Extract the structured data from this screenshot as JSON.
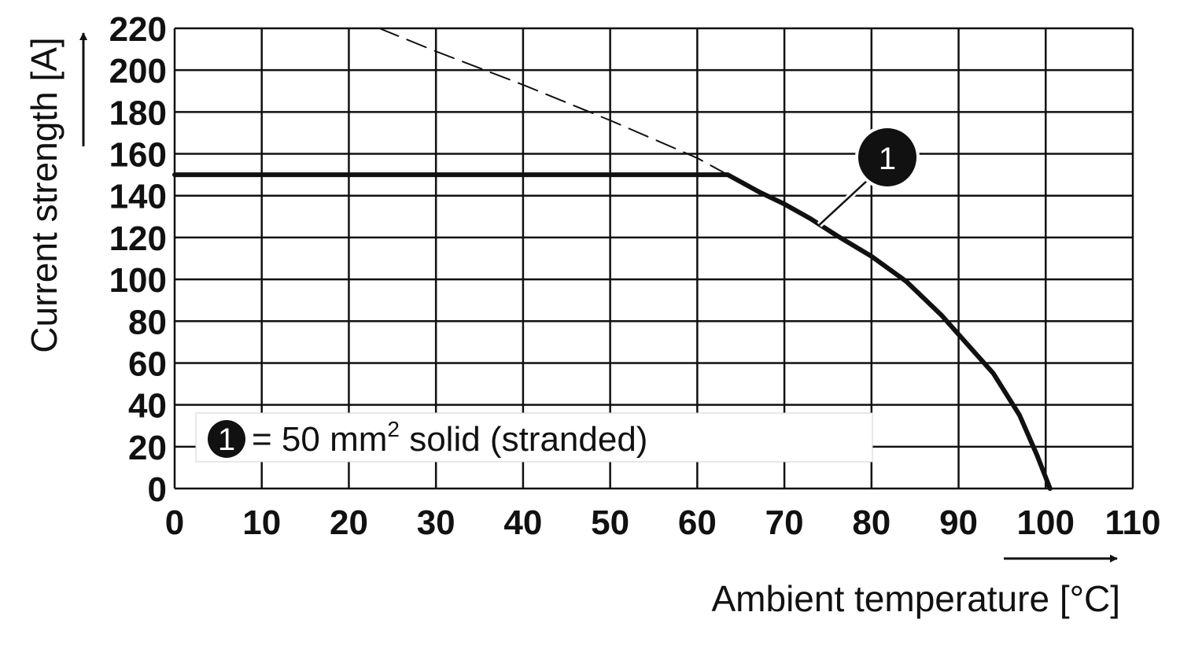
{
  "chart_data": {
    "type": "line",
    "xlabel": "Ambient temperature [°C]",
    "ylabel": "Current strength [A]",
    "xlim": [
      0,
      110
    ],
    "ylim": [
      0,
      220
    ],
    "x_ticks": [
      0,
      10,
      20,
      30,
      40,
      50,
      60,
      70,
      80,
      90,
      100,
      110
    ],
    "y_ticks": [
      0,
      20,
      40,
      60,
      80,
      100,
      120,
      140,
      160,
      180,
      200,
      220
    ],
    "grid": true,
    "series": [
      {
        "id": "1",
        "style": "solid-thick",
        "color": "#111111",
        "x": [
          0,
          63.5,
          67,
          70,
          73,
          76,
          80,
          84,
          88,
          91,
          94,
          97,
          99,
          100.5
        ],
        "y": [
          150,
          150,
          142,
          136,
          129,
          121,
          111,
          99,
          83,
          69,
          55,
          35,
          16,
          0
        ]
      },
      {
        "id": "1-extension",
        "style": "dashed",
        "color": "#111111",
        "x": [
          23.5,
          30,
          40,
          50,
          60,
          63.5
        ],
        "y": [
          220,
          209,
          193,
          176,
          158,
          150
        ]
      }
    ],
    "callout": {
      "label": "1",
      "x": 74,
      "y": 126
    },
    "legend": {
      "marker": "1",
      "text_before": "= 50 mm",
      "superscript": "2",
      "text_after": " solid (stranded)",
      "placement": "bottom-left"
    }
  }
}
